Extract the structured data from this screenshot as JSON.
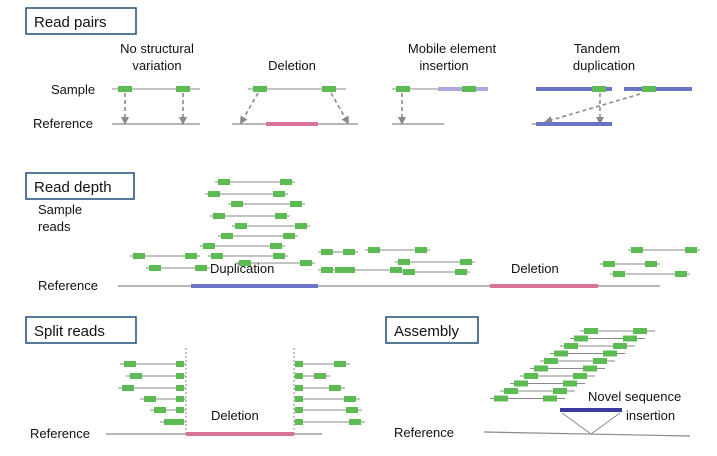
{
  "sections": {
    "read_pairs": {
      "title": "Read pairs",
      "row_sample": "Sample",
      "row_reference": "Reference",
      "cases": [
        {
          "line1": "No structural",
          "line2": "variation"
        },
        {
          "line1": "Deletion",
          "line2": ""
        },
        {
          "line1": "Mobile element",
          "line2": "insertion"
        },
        {
          "line1": "Tandem",
          "line2": "duplication"
        }
      ]
    },
    "read_depth": {
      "title": "Read depth",
      "sample_reads_line1": "Sample",
      "sample_reads_line2": "reads",
      "row_reference": "Reference",
      "dup_label": "Duplication",
      "del_label": "Deletion"
    },
    "split_reads": {
      "title": "Split reads",
      "row_reference": "Reference",
      "del_label": "Deletion"
    },
    "assembly": {
      "title": "Assembly",
      "row_reference": "Reference",
      "novel_line1": "Novel sequence",
      "novel_line2": "insertion"
    }
  },
  "colors": {
    "read_segment": "#5dbb53",
    "deletion": "#d9739a",
    "duplication": "#6a74c4",
    "mobile_element": "#a9a9dc",
    "novel_insertion": "#3a3aa0",
    "header_border": "#1f4e79"
  }
}
